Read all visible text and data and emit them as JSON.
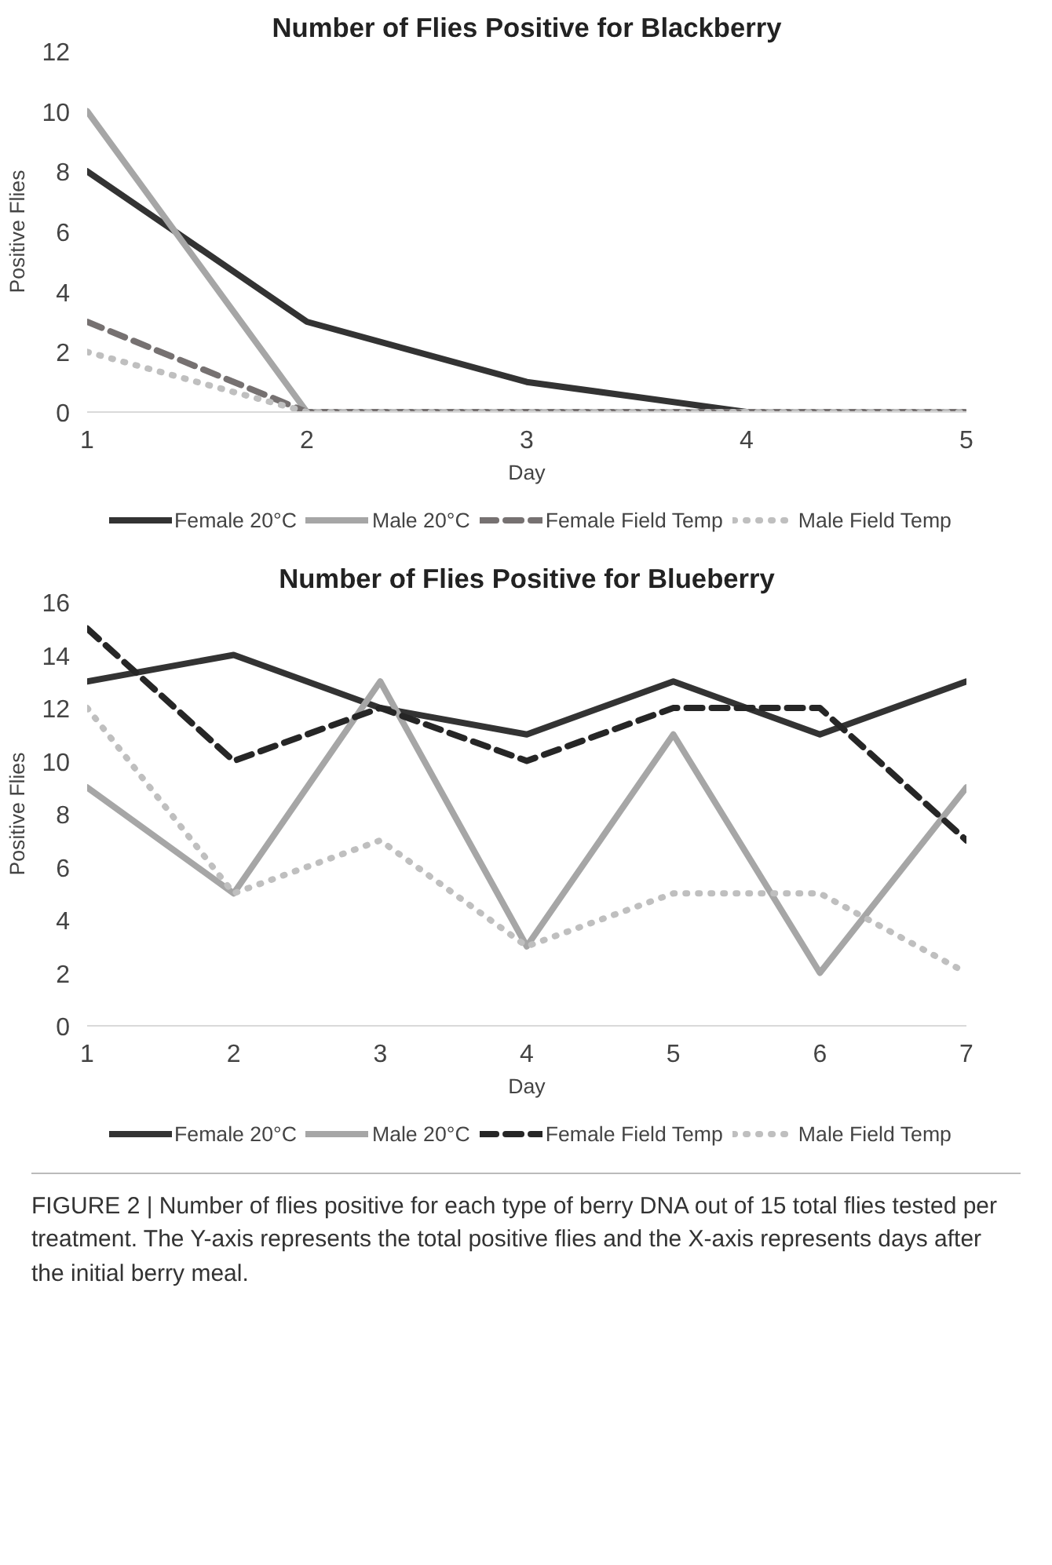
{
  "chart_data": [
    {
      "type": "line",
      "title": "Number of Flies Positive for Blackberry",
      "xlabel": "Day",
      "ylabel": "Positive Flies",
      "x": [
        1,
        2,
        3,
        4,
        5
      ],
      "xlim": [
        1,
        5
      ],
      "xticks": [
        1,
        2,
        3,
        4,
        5
      ],
      "ylim": [
        0,
        12
      ],
      "yticks": [
        0,
        2,
        4,
        6,
        8,
        10,
        12
      ],
      "grid": false,
      "legend": "bottom",
      "series": [
        {
          "name": "Female 20°C",
          "color": "#333333",
          "line_style": "solid",
          "values": [
            8,
            3,
            1,
            0,
            0
          ]
        },
        {
          "name": "Male 20°C",
          "color": "#a6a6a6",
          "line_style": "solid",
          "values": [
            10,
            0,
            0,
            0,
            0
          ]
        },
        {
          "name": "Female Field Temp",
          "color": "#767171",
          "line_style": "dashed",
          "values": [
            3,
            0,
            0,
            0,
            0
          ]
        },
        {
          "name": "Male Field Temp",
          "color": "#bfbfbf",
          "line_style": "dotted",
          "values": [
            2,
            0,
            0,
            0,
            0
          ]
        }
      ]
    },
    {
      "type": "line",
      "title": "Number of Flies Positive for Blueberry",
      "xlabel": "Day",
      "ylabel": "Positive Flies",
      "x": [
        1,
        2,
        3,
        4,
        5,
        6,
        7
      ],
      "xlim": [
        1,
        7
      ],
      "xticks": [
        1,
        2,
        3,
        4,
        5,
        6,
        7
      ],
      "ylim": [
        0,
        16
      ],
      "yticks": [
        0,
        2,
        4,
        6,
        8,
        10,
        12,
        14,
        16
      ],
      "grid": false,
      "legend": "bottom",
      "series": [
        {
          "name": "Female 20°C",
          "color": "#333333",
          "line_style": "solid",
          "values": [
            13,
            14,
            12,
            11,
            13,
            11,
            13
          ]
        },
        {
          "name": "Male 20°C",
          "color": "#a6a6a6",
          "line_style": "solid",
          "values": [
            9,
            5,
            13,
            3,
            11,
            2,
            9
          ]
        },
        {
          "name": "Female Field Temp",
          "color": "#262626",
          "line_style": "dashed",
          "values": [
            15,
            10,
            12,
            10,
            12,
            12,
            7
          ]
        },
        {
          "name": "Male Field Temp",
          "color": "#bfbfbf",
          "line_style": "dotted",
          "values": [
            12,
            5,
            7,
            3,
            5,
            5,
            2
          ]
        }
      ],
      "annotations": [
        "FIGURE 2 | Number of flies positive for each type of berry DNA out of 15 total flies tested per treatment. The Y-axis represents the total positive flies and the X-axis represents days after the initial berry meal."
      ]
    }
  ]
}
